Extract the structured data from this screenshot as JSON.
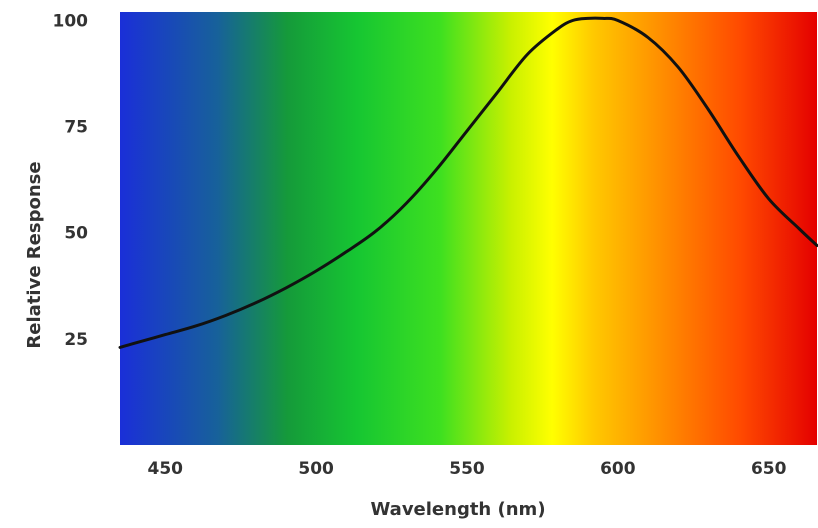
{
  "chart_data": {
    "type": "line",
    "title": "",
    "xlabel": "Wavelength (nm)",
    "ylabel": "Relative Response",
    "xlim": [
      435,
      666
    ],
    "ylim": [
      0,
      102
    ],
    "xticks": [
      450,
      500,
      550,
      600,
      650
    ],
    "yticks": [
      25,
      50,
      75,
      100
    ],
    "background": "visible-spectrum-gradient",
    "gradient_colors": [
      "#1a2fd8",
      "#16c632",
      "#ffff00",
      "#ff8c00",
      "#e40000"
    ],
    "line_color": "#111111",
    "grid": false,
    "legend": "none",
    "series": [
      {
        "x": [
          435,
          440,
          450,
          460,
          470,
          480,
          490,
          500,
          510,
          520,
          530,
          540,
          550,
          560,
          570,
          580,
          585,
          590,
          595,
          600,
          610,
          620,
          630,
          640,
          650,
          660,
          666
        ],
        "y": [
          23,
          24,
          26,
          28,
          30.5,
          33.5,
          37,
          41,
          45.5,
          50.5,
          57,
          65,
          74,
          83,
          92,
          98,
          100,
          100.5,
          100.5,
          100,
          96,
          89,
          79,
          68,
          58,
          51,
          47
        ]
      }
    ]
  }
}
